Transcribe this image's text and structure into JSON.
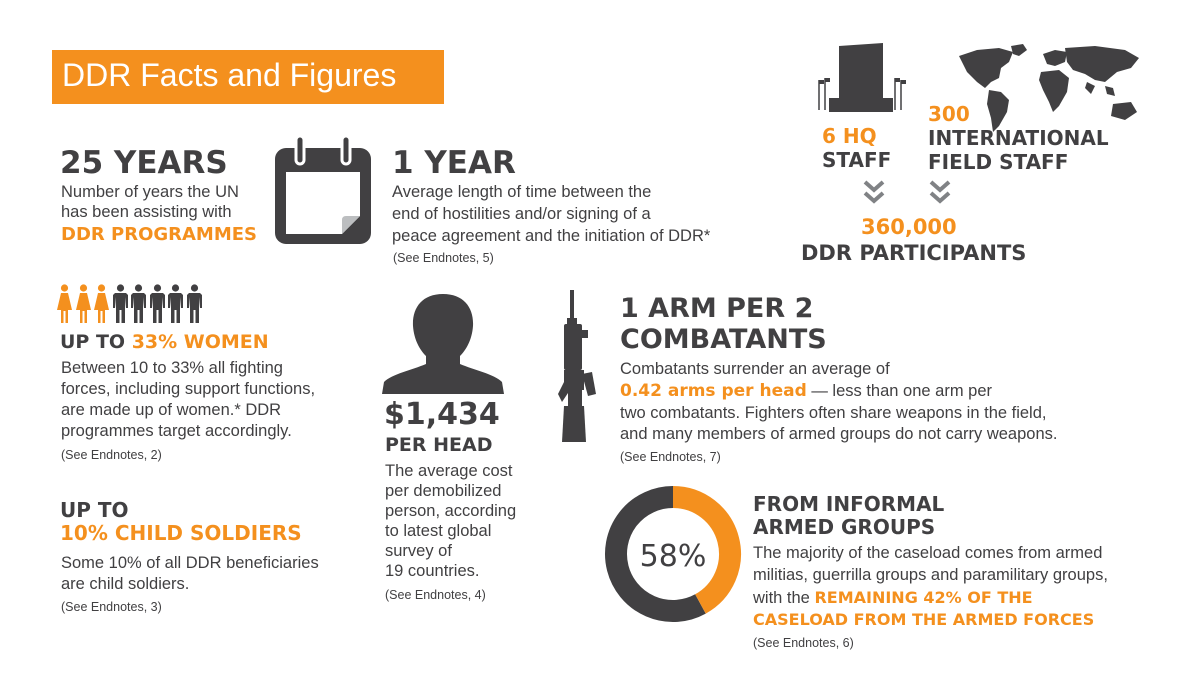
{
  "title": "DDR Facts and Figures",
  "colors": {
    "orange": "#f4901e",
    "dark": "#414042",
    "white": "#ffffff"
  },
  "icons": [
    "calendar-icon",
    "un-building-icon",
    "world-map-icon",
    "chevron-down-icon",
    "woman-icon",
    "man-icon",
    "head-silhouette-icon",
    "rifle-icon",
    "donut-chart"
  ],
  "years": {
    "headline": "25 YEARS",
    "line1": "Number of years the UN",
    "line2": "has been assisting with",
    "highlight": "DDR PROGRAMMES"
  },
  "one_year": {
    "headline": "1 YEAR",
    "line1": "Average length of time between the",
    "line2": "end of hostilities and/or signing of a",
    "line3": "peace agreement and the initiation of DDR*",
    "note": "(See Endnotes, 5)"
  },
  "staff": {
    "hq_line1": "6 HQ",
    "hq_line2": "STAFF",
    "intl_line1": "300",
    "intl_line2": "INTERNATIONAL",
    "intl_line3": "FIELD STAFF",
    "participants_number": "360,000",
    "participants_label": "DDR PARTICIPANTS"
  },
  "women": {
    "women_count": 3,
    "men_count": 5,
    "headline_prefix": "UP TO ",
    "headline_highlight": "33% WOMEN",
    "line1": "Between 10 to 33% all fighting",
    "line2": "forces, including support functions,",
    "line3": "are made up of women.* DDR",
    "line4": "programmes target accordingly.",
    "note": "(See Endnotes, 2)"
  },
  "child": {
    "headline_line1": "UP TO",
    "headline_line2": "10% CHILD SOLDIERS",
    "line1": "Some 10% of all DDR beneficiaries",
    "line2": "are child soldiers.",
    "note": "(See Endnotes, 3)"
  },
  "cost": {
    "amount": "$1,434",
    "label": "PER HEAD",
    "line1": "The average cost",
    "line2": "per demobilized",
    "line3": "person, according",
    "line4": "to latest global",
    "line5": "survey of",
    "line6": "19 countries.",
    "note": "(See Endnotes, 4)"
  },
  "arms": {
    "headline_line1": "1 ARM PER 2",
    "headline_line2": "COMBATANTS",
    "line1": "Combatants surrender an average of",
    "highlight": "0.42 arms per head",
    "line2_rest": " — less than one arm per",
    "line3": "two combatants. Fighters often share weapons in the field,",
    "line4": "and many members of armed groups do not carry weapons.",
    "note": "(See Endnotes, 7)"
  },
  "chart_data": {
    "type": "pie",
    "categories": [
      "Informal armed groups",
      "Armed forces"
    ],
    "values": [
      58,
      42
    ],
    "colors": [
      "#414042",
      "#f4901e"
    ],
    "center_label": "58%"
  },
  "informal": {
    "headline_line1": "FROM INFORMAL",
    "headline_line2": "ARMED GROUPS",
    "line1": "The majority of the caseload comes from armed",
    "line2": "militias, guerrilla groups and paramilitary groups,",
    "line3_prefix": "with the ",
    "highlight_line1": "REMAINING 42% OF THE",
    "highlight_line2": "CASELOAD FROM THE ARMED FORCES",
    "note": "(See Endnotes, 6)"
  }
}
